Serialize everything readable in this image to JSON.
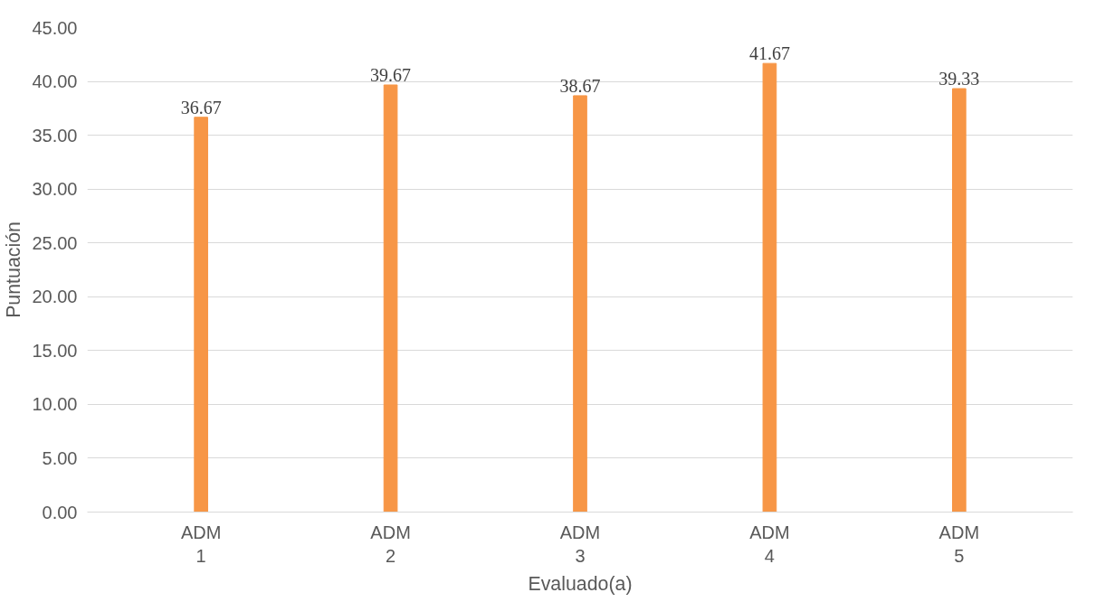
{
  "chart_data": {
    "type": "bar",
    "xlabel": "Evaluado(a)",
    "ylabel": "Puntuación",
    "categories": [
      "ADM 1",
      "ADM 2",
      "ADM 3",
      "ADM 4",
      "ADM 5"
    ],
    "values": [
      36.67,
      39.67,
      38.67,
      41.67,
      39.33
    ],
    "color": "#f79646",
    "ylim": [
      0,
      45
    ],
    "yticks": [
      {
        "value": 0,
        "label": "0.00"
      },
      {
        "value": 5,
        "label": "5.00"
      },
      {
        "value": 10,
        "label": "10.00"
      },
      {
        "value": 15,
        "label": "15.00"
      },
      {
        "value": 20,
        "label": "20.00"
      },
      {
        "value": 25,
        "label": "25.00"
      },
      {
        "value": 30,
        "label": "30.00"
      },
      {
        "value": 35,
        "label": "35.00"
      },
      {
        "value": 40,
        "label": "40.00"
      },
      {
        "value": 45,
        "label": "45.00"
      }
    ],
    "grid": "y",
    "data_labels": true
  }
}
